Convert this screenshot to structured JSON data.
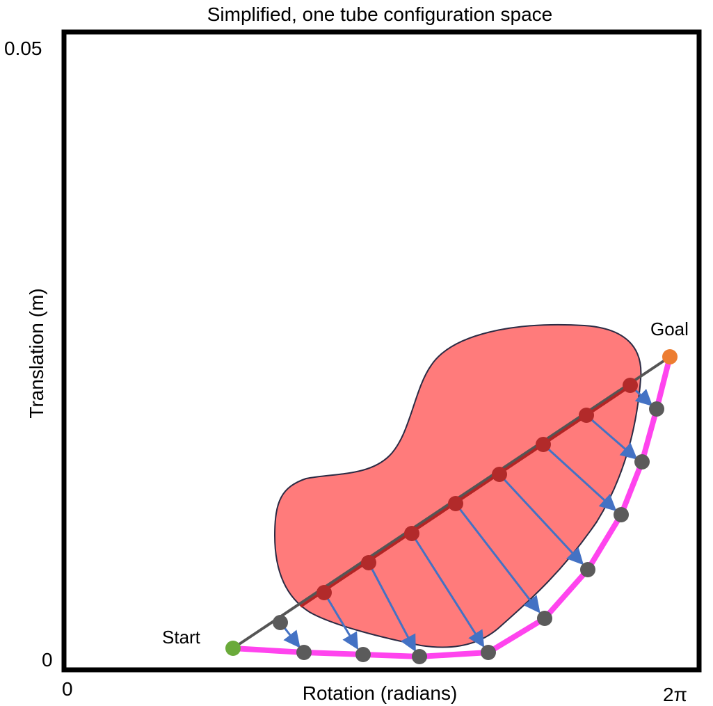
{
  "title": "Simplified, one tube configuration space",
  "axes": {
    "x_label": "Rotation (radians)",
    "y_label": "Translation (m)",
    "x_min_label": "0",
    "x_max_label": "2π",
    "y_min_label": "0",
    "y_max_label": "0.05"
  },
  "annotations": {
    "start": "Start",
    "goal": "Goal"
  },
  "colors": {
    "frame": "#000000",
    "obstacle_fill": "#ff7b7b",
    "obstacle_stroke": "#2b2b44",
    "straight_path": "#555555",
    "colliding_segment": "#b32424",
    "colliding_node": "#b22a2a",
    "projected_node": "#5b5b5b",
    "projection_arrow": "#4472c4",
    "resolved_path": "#ff44ee",
    "start_node": "#6aaa3a",
    "goal_node": "#ed7d31"
  }
}
